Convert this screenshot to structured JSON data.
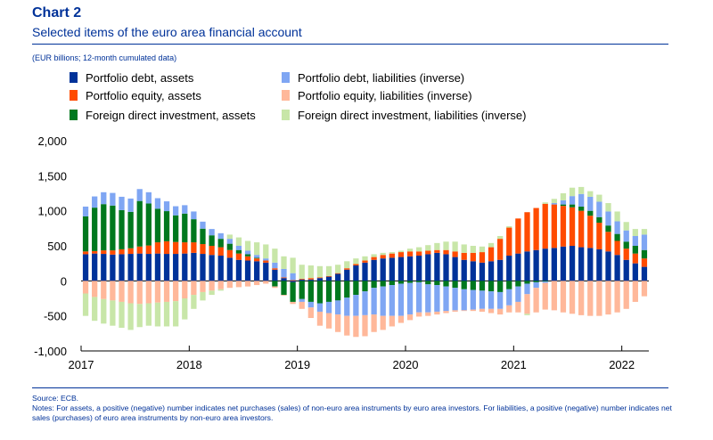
{
  "header": {
    "title": "Chart 2",
    "subtitle": "Selected items of the euro area financial account",
    "units": "(EUR billions; 12-month cumulated data)"
  },
  "footer": {
    "source": "Source: ECB.",
    "notes": "Notes: For assets, a positive (negative) number indicates net purchases (sales) of non-euro area instruments by euro area investors. For liabilities, a positive (negative) number indicates net sales (purchases) of euro area instruments by non-euro area investors."
  },
  "chart_data": {
    "type": "bar",
    "stacked": true,
    "x_start": "2017-01",
    "x_ticks": [
      "2017",
      "2018",
      "2019",
      "2020",
      "2021",
      "2022"
    ],
    "y_ticks": [
      "2,000",
      "1,500",
      "1,000",
      "500",
      "0",
      "-500",
      "-1,000"
    ],
    "ylim": [
      -1000,
      2000
    ],
    "legend_position": "top",
    "series": [
      {
        "name": "Portfolio debt, assets",
        "color": "#003299",
        "values": [
          380,
          390,
          385,
          375,
          380,
          385,
          390,
          385,
          390,
          385,
          385,
          390,
          400,
          385,
          370,
          360,
          330,
          300,
          290,
          280,
          260,
          160,
          40,
          -20,
          20,
          20,
          40,
          60,
          100,
          160,
          220,
          260,
          300,
          320,
          330,
          340,
          350,
          360,
          380,
          400,
          380,
          340,
          300,
          280,
          260,
          280,
          300,
          360,
          390,
          420,
          440,
          460,
          470,
          490,
          500,
          480,
          470,
          450,
          420,
          370,
          300,
          250,
          200
        ]
      },
      {
        "name": "Portfolio equity, assets",
        "color": "#ff4b00",
        "values": [
          40,
          35,
          50,
          60,
          70,
          80,
          100,
          120,
          160,
          180,
          170,
          160,
          150,
          140,
          130,
          120,
          110,
          90,
          60,
          40,
          30,
          20,
          10,
          10,
          10,
          20,
          10,
          10,
          10,
          20,
          20,
          30,
          40,
          50,
          60,
          70,
          70,
          60,
          50,
          40,
          60,
          80,
          100,
          120,
          150,
          200,
          300,
          400,
          500,
          560,
          600,
          640,
          620,
          580,
          550,
          520,
          460,
          380,
          280,
          200,
          160,
          140,
          120
        ]
      },
      {
        "name": "Foreign direct investment, assets",
        "color": "#00781e",
        "values": [
          500,
          620,
          660,
          640,
          560,
          520,
          650,
          600,
          480,
          430,
          380,
          410,
          330,
          220,
          150,
          120,
          90,
          50,
          30,
          10,
          0,
          -80,
          -200,
          -280,
          -260,
          -300,
          -320,
          -300,
          -280,
          -240,
          -200,
          -150,
          -100,
          -80,
          -60,
          -40,
          -30,
          -20,
          -50,
          -60,
          -80,
          -100,
          -120,
          -130,
          -140,
          -150,
          -160,
          -120,
          -80,
          -40,
          -20,
          -10,
          0,
          20,
          40,
          60,
          70,
          80,
          90,
          100,
          100,
          110,
          120
        ]
      },
      {
        "name": "Portfolio debt, liabilities (inverse)",
        "color": "#7fa6f3",
        "values": [
          140,
          160,
          170,
          180,
          190,
          190,
          170,
          160,
          150,
          140,
          130,
          120,
          110,
          100,
          90,
          80,
          70,
          60,
          50,
          40,
          30,
          80,
          120,
          100,
          -40,
          -80,
          -120,
          -160,
          -200,
          -260,
          -300,
          -340,
          -380,
          -420,
          -440,
          -460,
          -450,
          -430,
          -400,
          -380,
          -350,
          -320,
          -300,
          -280,
          -260,
          -250,
          -240,
          -230,
          -220,
          -150,
          -80,
          -20,
          20,
          60,
          120,
          180,
          200,
          220,
          200,
          180,
          160,
          140,
          220
        ]
      },
      {
        "name": "Portfolio equity, liabilities (inverse)",
        "color": "#ffb89a",
        "values": [
          -180,
          -230,
          -260,
          -280,
          -300,
          -320,
          -330,
          -320,
          -310,
          -300,
          -290,
          -250,
          -200,
          -160,
          -140,
          -120,
          -100,
          -90,
          -80,
          -60,
          -40,
          -20,
          -10,
          -30,
          -100,
          -150,
          -200,
          -220,
          -250,
          -280,
          -300,
          -300,
          -250,
          -200,
          -150,
          -100,
          -80,
          -60,
          -50,
          -40,
          -30,
          -20,
          -10,
          -20,
          -40,
          -60,
          -80,
          -100,
          -150,
          -280,
          -350,
          -380,
          -420,
          -450,
          -470,
          -490,
          -500,
          -500,
          -480,
          -450,
          -400,
          -300,
          -220
        ]
      },
      {
        "name": "Foreign direct investment, liabilities (inverse)",
        "color": "#c8e6a8",
        "values": [
          -320,
          -340,
          -350,
          -360,
          -370,
          -380,
          -330,
          -320,
          -340,
          -350,
          -360,
          -300,
          -200,
          -120,
          -60,
          -20,
          60,
          120,
          140,
          180,
          200,
          200,
          180,
          220,
          200,
          180,
          160,
          140,
          120,
          100,
          80,
          60,
          40,
          30,
          20,
          20,
          40,
          60,
          80,
          100,
          120,
          140,
          120,
          100,
          80,
          60,
          40,
          20,
          0,
          -20,
          0,
          20,
          60,
          100,
          120,
          100,
          80,
          100,
          120,
          140,
          120,
          100,
          80
        ]
      }
    ]
  }
}
